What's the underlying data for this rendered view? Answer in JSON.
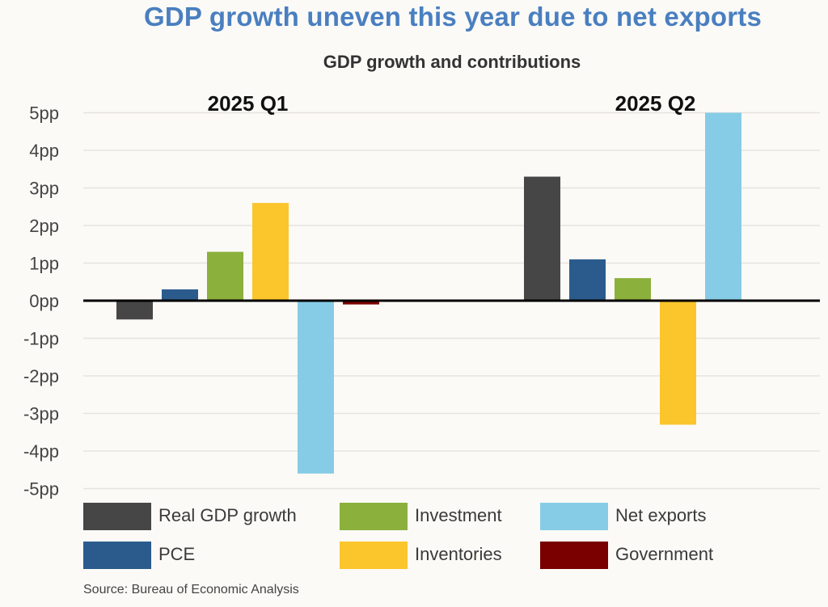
{
  "chart_data": {
    "type": "bar",
    "title": "GDP growth uneven this year due to net exports",
    "subtitle": "GDP growth and contributions",
    "xlabel": "",
    "ylabel": "",
    "categories": [
      "2025 Q1",
      "2025 Q2"
    ],
    "series": [
      {
        "name": "Real GDP growth",
        "color": "#464646",
        "values": [
          -0.5,
          3.3
        ]
      },
      {
        "name": "PCE",
        "color": "#2b5b8c",
        "values": [
          0.3,
          1.1
        ]
      },
      {
        "name": "Investment",
        "color": "#8bb03c",
        "values": [
          1.3,
          0.6
        ]
      },
      {
        "name": "Inventories",
        "color": "#fbc52c",
        "values": [
          2.6,
          -3.3
        ]
      },
      {
        "name": "Net exports",
        "color": "#87cce6",
        "values": [
          -4.6,
          5.0
        ]
      },
      {
        "name": "Government",
        "color": "#7a0000",
        "values": [
          -0.1,
          0.0
        ]
      }
    ],
    "ylim": [
      -5,
      5
    ],
    "yticks": [
      5,
      4,
      3,
      2,
      1,
      0,
      -1,
      -2,
      -3,
      -4,
      -5
    ],
    "ytick_labels": [
      "5pp",
      "4pp",
      "3pp",
      "2pp",
      "1pp",
      "0pp",
      "-1pp",
      "-2pp",
      "-3pp",
      "-4pp",
      "-5pp"
    ],
    "grid": true,
    "legend_position": "bottom",
    "source": "Source: Bureau of Economic Analysis"
  }
}
